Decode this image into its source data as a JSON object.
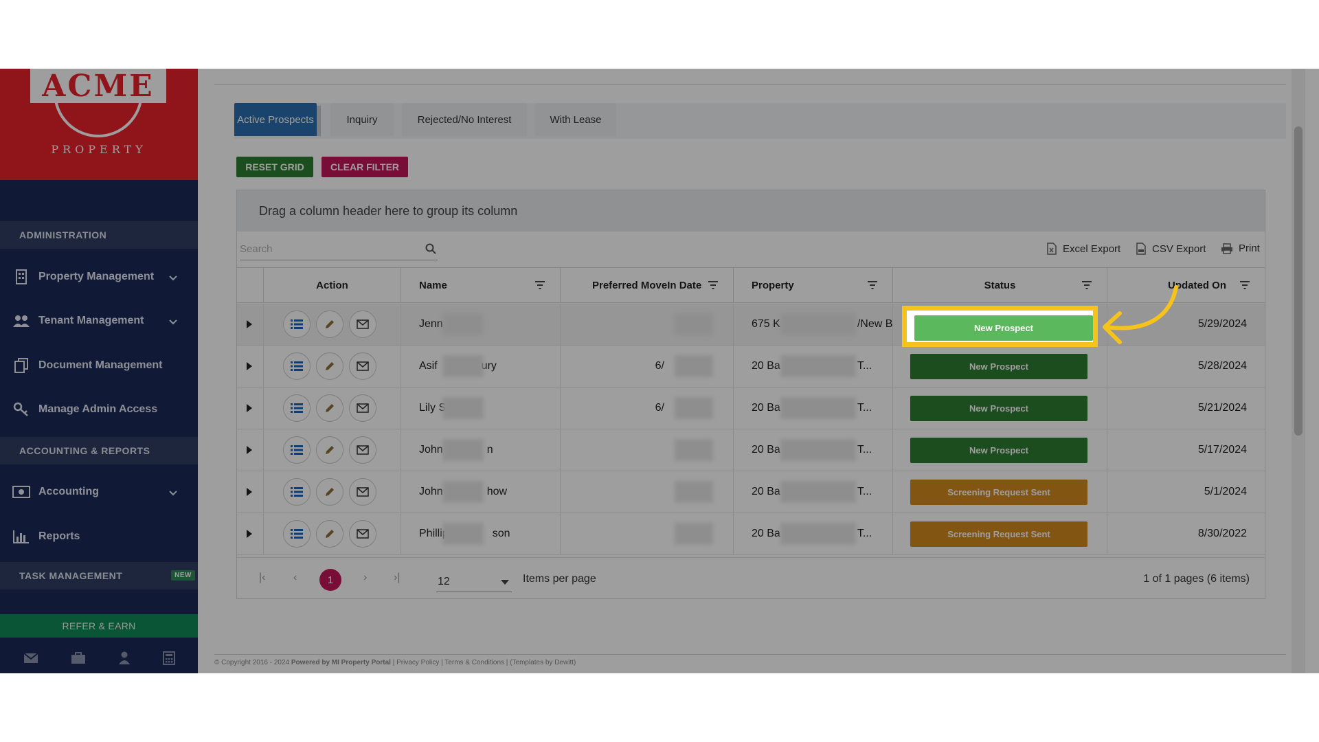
{
  "sidebar": {
    "logo_text": "ACME",
    "logo_subtext": "PROPERTY",
    "section_admin": "ADMINISTRATION",
    "section_accounting": "ACCOUNTING & REPORTS",
    "section_task": "TASK MANAGEMENT",
    "new_badge": "NEW",
    "items": [
      {
        "label": "Property Management",
        "icon": "building-icon"
      },
      {
        "label": "Tenant Management",
        "icon": "users-icon"
      },
      {
        "label": "Document Management",
        "icon": "documents-icon"
      },
      {
        "label": "Manage Admin Access",
        "icon": "key-icon"
      },
      {
        "label": "Accounting",
        "icon": "money-icon"
      },
      {
        "label": "Reports",
        "icon": "bar-chart-icon"
      }
    ],
    "refer_label": "REFER & EARN"
  },
  "tabs": [
    "Active Prospects",
    "Inquiry",
    "Rejected/No Interest",
    "With Lease"
  ],
  "toolbar": {
    "reset_label": "RESET GRID",
    "clear_label": "CLEAR FILTER"
  },
  "grid": {
    "group_hint": "Drag a column header here to group its column",
    "search_placeholder": "Search",
    "exports": {
      "excel": "Excel Export",
      "csv": "CSV Export",
      "print": "Print"
    },
    "columns": [
      "Action",
      "Name",
      "Preferred MoveIn Date",
      "Property",
      "Status",
      "Updated On"
    ],
    "rows": [
      {
        "name": "Jenn",
        "name_tail": "",
        "move_in": "",
        "property": "675 K",
        "property_tail": "/New B...",
        "status": "New Prospect",
        "updated": "5/29/2024"
      },
      {
        "name": "Asif",
        "name_tail": "ury",
        "move_in": "6/",
        "property": "20 Ba",
        "property_tail": "T...",
        "status": "New Prospect",
        "updated": "5/28/2024"
      },
      {
        "name": "Lily S",
        "name_tail": "",
        "move_in": "6/",
        "property": "20 Ba",
        "property_tail": "T...",
        "status": "New Prospect",
        "updated": "5/21/2024"
      },
      {
        "name": "John",
        "name_tail": "n",
        "move_in": "",
        "property": "20 Ba",
        "property_tail": "T...",
        "status": "New Prospect",
        "updated": "5/17/2024"
      },
      {
        "name": "John",
        "name_tail": "how",
        "move_in": "",
        "property": "20 Ba",
        "property_tail": "T...",
        "status": "Screening Request Sent",
        "updated": "5/1/2024"
      },
      {
        "name": "Phillip",
        "name_tail": "son",
        "move_in": "",
        "property": "20 Ba",
        "property_tail": "T...",
        "status": "Screening Request Sent",
        "updated": "8/30/2022"
      }
    ],
    "pager": {
      "current_page": "1",
      "page_size": "12",
      "items_label": "Items per page",
      "summary": "1 of 1 pages (6 items)"
    }
  },
  "footer": {
    "copyright": "© Copyright 2016 - 2024",
    "powered": "Powered by MI Property Portal",
    "privacy": "Privacy Policy",
    "terms": "Terms & Conditions",
    "templates": "(Templates by Dewitt)"
  },
  "highlight": {
    "status": "New Prospect",
    "color": "#f6c21c"
  },
  "colors": {
    "sidebar": "#1a2a5a",
    "logo_red": "#e8222a",
    "tab_active": "#2d6fb0",
    "reset": "#2e7d32",
    "clear": "#c2185b",
    "status_green": "#2e7d32",
    "status_orange": "#d4891e"
  }
}
